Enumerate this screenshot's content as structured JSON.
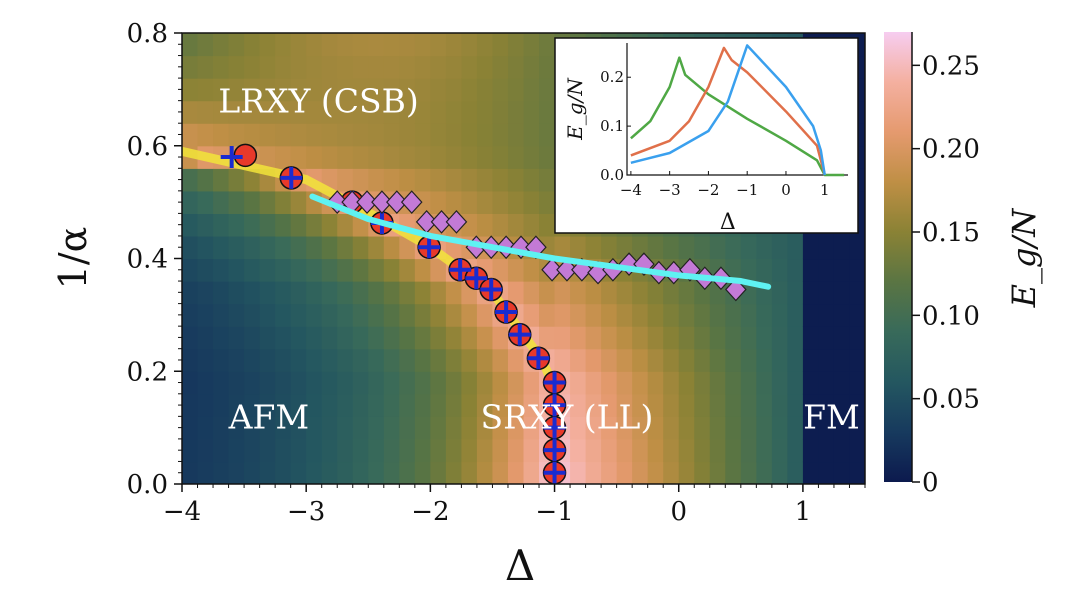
{
  "chart_data": {
    "type": "heatmap",
    "xlabel": "Δ",
    "ylabel": "1/α",
    "xlim": [
      -4,
      1.5
    ],
    "ylim": [
      0.0,
      0.8
    ],
    "xticks": [
      "−4",
      "−3",
      "−2",
      "−1",
      "0",
      "1"
    ],
    "xtick_values": [
      -4,
      -3,
      -2,
      -1,
      0,
      1
    ],
    "yticks": [
      "0.0",
      "0.2",
      "0.4",
      "0.6",
      "0.8"
    ],
    "ytick_values": [
      0,
      0.2,
      0.4,
      0.6,
      0.8
    ],
    "colorbar": {
      "label": "E_g/N",
      "range": [
        0,
        0.27
      ],
      "ticks": [
        "0",
        "0.05",
        "0.10",
        "0.15",
        "0.20",
        "0.25"
      ],
      "tick_values": [
        0,
        0.05,
        0.1,
        0.15,
        0.2,
        0.25
      ],
      "colormap": [
        "#0c1a4e",
        "#173a5e",
        "#245760",
        "#386a5a",
        "#5a7543",
        "#8a8235",
        "#bf8f45",
        "#e59a6f",
        "#f4b0a0",
        "#f6cdf0"
      ]
    },
    "regions": [
      {
        "label": "LRXY (CSB)",
        "x": -2.9,
        "y": 0.68
      },
      {
        "label": "AFM",
        "x": -3.3,
        "y": 0.12
      },
      {
        "label": "SRXY (LL)",
        "x": -0.9,
        "y": 0.12
      },
      {
        "label": "FM",
        "x": 1.23,
        "y": 0.12
      }
    ],
    "circles": {
      "color": "#e8392a",
      "x": [
        -3.49,
        -3.12,
        -2.63,
        -2.39,
        -2.01,
        -1.76,
        -1.63,
        -1.51,
        -1.39,
        -1.28,
        -1.13,
        -1.0,
        -1.0,
        -1.0,
        -1.0,
        -1.0
      ],
      "y": [
        0.583,
        0.543,
        0.5,
        0.463,
        0.42,
        0.38,
        0.365,
        0.345,
        0.305,
        0.265,
        0.223,
        0.18,
        0.14,
        0.1,
        0.06,
        0.02
      ]
    },
    "crosses": {
      "color": "#1a2bd0",
      "x": [
        -3.6,
        -3.12,
        -2.63,
        -2.39,
        -2.01,
        -1.76,
        -1.63,
        -1.51,
        -1.39,
        -1.28,
        -1.13,
        -1.0,
        -1.0,
        -1.0,
        -1.0,
        -1.0
      ],
      "y": [
        0.58,
        0.543,
        0.5,
        0.463,
        0.42,
        0.38,
        0.365,
        0.345,
        0.305,
        0.265,
        0.223,
        0.18,
        0.14,
        0.1,
        0.06,
        0.02
      ]
    },
    "diamonds": {
      "color": "#c37ad6",
      "x": [
        -2.75,
        -2.63,
        -2.51,
        -2.39,
        -2.27,
        -2.15,
        -2.03,
        -1.91,
        -1.79,
        -1.63,
        -1.51,
        -1.39,
        -1.27,
        -1.15,
        -1.02,
        -0.9,
        -0.78,
        -0.65,
        -0.53,
        -0.4,
        -0.28,
        -0.16,
        -0.04,
        0.09,
        0.21,
        0.34,
        0.46
      ],
      "y": [
        0.5,
        0.5,
        0.5,
        0.5,
        0.5,
        0.5,
        0.465,
        0.465,
        0.465,
        0.42,
        0.42,
        0.42,
        0.42,
        0.42,
        0.38,
        0.38,
        0.38,
        0.375,
        0.38,
        0.39,
        0.39,
        0.375,
        0.375,
        0.38,
        0.365,
        0.365,
        0.345
      ]
    },
    "yellow_line": {
      "color": "#f2e43a",
      "x": [
        -4,
        -3,
        -2.4,
        -2,
        -1.75,
        -1.5,
        -1.3,
        -1.1,
        -1.0,
        -1.0
      ],
      "y": [
        0.59,
        0.54,
        0.47,
        0.42,
        0.38,
        0.34,
        0.28,
        0.22,
        0.17,
        0.0
      ]
    },
    "cyan_line": {
      "color": "#5ff2f2",
      "x": [
        -2.95,
        -2.5,
        -2,
        -1.5,
        -1,
        -0.5,
        0,
        0.5,
        0.72
      ],
      "y": [
        0.51,
        0.47,
        0.44,
        0.42,
        0.4,
        0.385,
        0.37,
        0.36,
        0.35
      ]
    },
    "inset": {
      "type": "line",
      "xlabel": "Δ",
      "ylabel": "E_g/N",
      "xlim": [
        -4.1,
        1.6
      ],
      "ylim": [
        0,
        0.27
      ],
      "xticks": [
        "−4",
        "−3",
        "−2",
        "−1",
        "0",
        "1"
      ],
      "xtick_values": [
        -4,
        -3,
        -2,
        -1,
        0,
        1
      ],
      "yticks": [
        "0.0",
        "0.1",
        "0.2"
      ],
      "ytick_values": [
        0,
        0.1,
        0.2
      ],
      "series": [
        {
          "color": "#4fa845",
          "x": [
            -4,
            -3.5,
            -3,
            -2.75,
            -2.6,
            -2,
            -1,
            0,
            0.8,
            1,
            1.5
          ],
          "y": [
            0.075,
            0.11,
            0.18,
            0.24,
            0.205,
            0.165,
            0.115,
            0.07,
            0.03,
            0.0,
            0.0
          ]
        },
        {
          "color": "#e0704a",
          "x": [
            -4,
            -3,
            -2.5,
            -2,
            -1.6,
            -1.4,
            -1,
            0,
            0.8,
            1
          ],
          "y": [
            0.04,
            0.07,
            0.11,
            0.18,
            0.26,
            0.235,
            0.21,
            0.13,
            0.06,
            0.0
          ]
        },
        {
          "color": "#3aa0ee",
          "x": [
            -4,
            -3,
            -2,
            -1.5,
            -1.0,
            0,
            0.7,
            0.9,
            1
          ],
          "y": [
            0.025,
            0.045,
            0.09,
            0.15,
            0.265,
            0.18,
            0.1,
            0.05,
            0.0
          ]
        }
      ]
    }
  }
}
